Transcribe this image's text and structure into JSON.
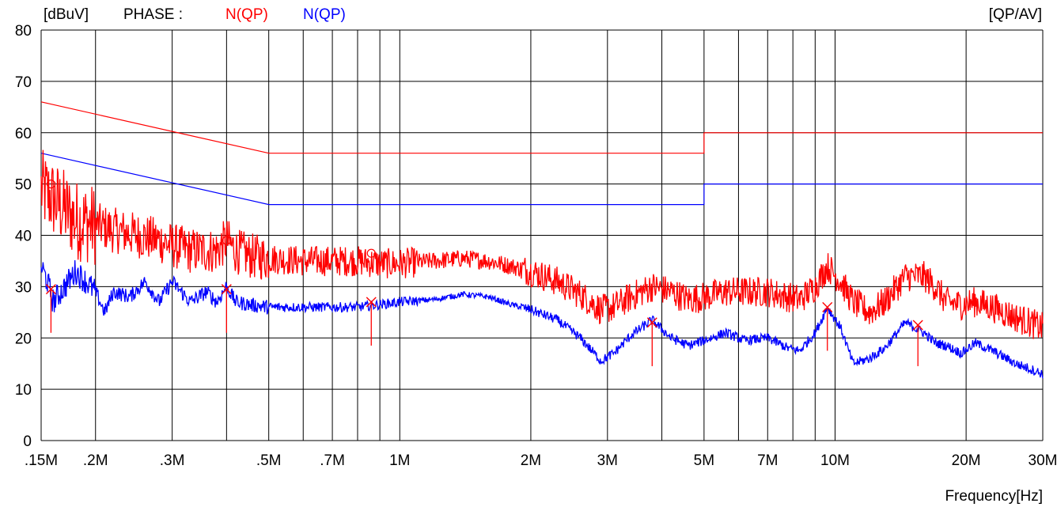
{
  "header": {
    "unit": "[dBuV]",
    "phase_label": "PHASE :",
    "series_red_label": "N(QP)",
    "series_blue_label": "N(QP)",
    "detector": "[QP/AV]"
  },
  "chart_data": {
    "type": "line",
    "xscale": "log",
    "xlabel": "Frequency[Hz]",
    "ylabel": "[dBuV]",
    "xlim": [
      0.15,
      30
    ],
    "ylim": [
      0,
      80
    ],
    "yticks": [
      0,
      10,
      20,
      30,
      40,
      50,
      60,
      70,
      80
    ],
    "xticks": [
      {
        "value": 0.15,
        "label": ".15M"
      },
      {
        "value": 0.2,
        "label": ".2M"
      },
      {
        "value": 0.3,
        "label": ".3M"
      },
      {
        "value": 0.5,
        "label": ".5M"
      },
      {
        "value": 0.7,
        "label": ".7M"
      },
      {
        "value": 1,
        "label": "1M"
      },
      {
        "value": 2,
        "label": "2M"
      },
      {
        "value": 3,
        "label": "3M"
      },
      {
        "value": 5,
        "label": "5M"
      },
      {
        "value": 7,
        "label": "7M"
      },
      {
        "value": 10,
        "label": "10M"
      },
      {
        "value": 20,
        "label": "20M"
      },
      {
        "value": 30,
        "label": "30M"
      }
    ],
    "xgrid": [
      0.15,
      0.2,
      0.3,
      0.4,
      0.5,
      0.6,
      0.7,
      0.8,
      0.9,
      1,
      2,
      3,
      4,
      5,
      6,
      7,
      8,
      9,
      10,
      20,
      30
    ],
    "grid": true,
    "colors": {
      "red": "#ff0000",
      "blue": "#0000ff",
      "grid": "#000000"
    },
    "limits": [
      {
        "color": "#ff0000",
        "x": [
          0.15,
          0.5,
          5,
          5,
          30
        ],
        "y": [
          66,
          56,
          56,
          60,
          60
        ]
      },
      {
        "color": "#0000ff",
        "x": [
          0.15,
          0.5,
          5,
          5,
          30
        ],
        "y": [
          56,
          46,
          46,
          50,
          50
        ]
      }
    ],
    "series": [
      {
        "color": "#ff0000",
        "noise": 5,
        "x": [
          0.15,
          0.16,
          0.17,
          0.18,
          0.2,
          0.22,
          0.25,
          0.28,
          0.3,
          0.33,
          0.36,
          0.38,
          0.4,
          0.42,
          0.45,
          0.5,
          0.6,
          0.7,
          0.8,
          0.9,
          1,
          1.2,
          1.4,
          1.6,
          1.8,
          2,
          2.3,
          2.6,
          2.9,
          3.1,
          3.4,
          3.8,
          4.2,
          4.6,
          5,
          5.6,
          6.2,
          7,
          7.8,
          8.3,
          9,
          9.6,
          10.3,
          11,
          12,
          13,
          14.5,
          16,
          17,
          18,
          19.5,
          21,
          23,
          26,
          28,
          30
        ],
        "y": [
          49,
          47,
          45,
          43,
          42,
          41,
          40,
          39,
          38,
          37,
          37,
          37,
          39,
          37,
          36,
          35.5,
          35,
          35,
          35,
          34.5,
          34.5,
          35,
          35.5,
          35,
          34,
          33,
          31,
          28.5,
          25.5,
          26,
          28,
          30,
          29,
          27.5,
          28,
          29,
          29,
          29,
          28,
          27.5,
          30,
          34,
          31,
          27,
          25,
          27,
          32,
          32,
          30,
          27,
          26.5,
          27,
          26,
          24,
          23,
          22
        ]
      },
      {
        "color": "#0000ff",
        "noise": 1.6,
        "x": [
          0.15,
          0.155,
          0.16,
          0.17,
          0.18,
          0.19,
          0.2,
          0.21,
          0.22,
          0.24,
          0.26,
          0.28,
          0.3,
          0.33,
          0.36,
          0.38,
          0.4,
          0.42,
          0.45,
          0.5,
          0.6,
          0.7,
          0.8,
          0.9,
          1,
          1.2,
          1.4,
          1.6,
          1.8,
          2,
          2.3,
          2.6,
          2.9,
          3.1,
          3.4,
          3.8,
          4.2,
          4.6,
          5,
          5.6,
          6.2,
          7,
          7.8,
          8.3,
          9,
          9.6,
          10.3,
          11,
          12,
          13,
          14.5,
          16,
          17,
          18,
          19.5,
          21,
          23,
          26,
          28,
          30
        ],
        "y": [
          34,
          31,
          27,
          30,
          33,
          31,
          29,
          25,
          29,
          28,
          31,
          27,
          31,
          27,
          29,
          27,
          30,
          27,
          26.5,
          26,
          26,
          26,
          26,
          26.5,
          27,
          27.5,
          28.5,
          28,
          26.5,
          25.5,
          23.5,
          20,
          15.5,
          17,
          20.5,
          23.5,
          20,
          18.5,
          19.5,
          21,
          19.5,
          20,
          18,
          17.5,
          21,
          26,
          22,
          15,
          16,
          18,
          23,
          21,
          19,
          18.5,
          17,
          19,
          17.5,
          15,
          14,
          13
        ]
      }
    ],
    "markers": [
      {
        "x": 0.158,
        "y": 29.5,
        "color": "#ff0000",
        "shape": "x",
        "drop": 21
      },
      {
        "x": 0.158,
        "y": 50,
        "color": "#ff0000",
        "shape": "o",
        "drop": null
      },
      {
        "x": 0.4,
        "y": 29.5,
        "color": "#ff0000",
        "shape": "x",
        "drop": 21
      },
      {
        "x": 0.4,
        "y": 39,
        "color": "#ff0000",
        "shape": "o",
        "drop": null
      },
      {
        "x": 0.86,
        "y": 27,
        "color": "#ff0000",
        "shape": "x",
        "drop": 18.5
      },
      {
        "x": 0.86,
        "y": 36.5,
        "color": "#ff0000",
        "shape": "o",
        "drop": null
      },
      {
        "x": 3.8,
        "y": 23,
        "color": "#ff0000",
        "shape": "x",
        "drop": 14.5
      },
      {
        "x": 9.6,
        "y": 26,
        "color": "#ff0000",
        "shape": "x",
        "drop": 17.5
      },
      {
        "x": 15.5,
        "y": 22.5,
        "color": "#ff0000",
        "shape": "x",
        "drop": 14.5
      }
    ]
  }
}
